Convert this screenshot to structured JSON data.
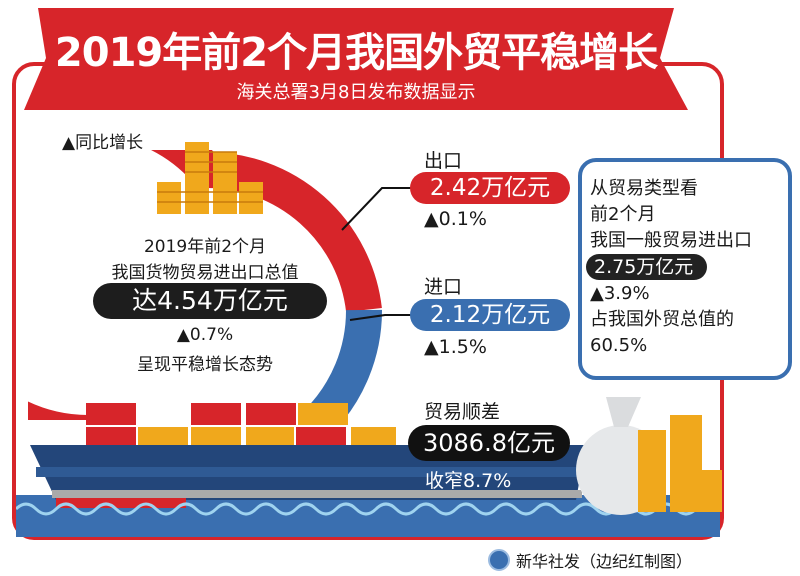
{
  "header": {
    "title": "2019年前2个月我国外贸平稳增长",
    "subtitle": "海关总署3月8日发布数据显示"
  },
  "legend": {
    "yoy_label": "▲同比增长"
  },
  "total": {
    "line1": "2019年前2个月",
    "line2": "我国货物贸易进出口总值",
    "value": "达4.54万亿元",
    "growth": "▲0.7%",
    "line3": "呈现平稳增长态势"
  },
  "export": {
    "label": "出口",
    "value": "2.42万亿元",
    "growth": "▲0.1%",
    "share_fraction": 0.533
  },
  "import": {
    "label": "进口",
    "value": "2.12万亿元",
    "growth": "▲1.5%"
  },
  "surplus": {
    "label": "贸易顺差",
    "value": "3086.8亿元",
    "change": "收窄8.7%"
  },
  "general_trade": {
    "line1": "从贸易类型看",
    "line2": "前2个月",
    "line3": "我国一般贸易进出口",
    "value": "2.75万亿元",
    "growth": "▲3.9%",
    "line4": "占我国外贸总值的",
    "share": "60.5%"
  },
  "credit": "新华社发（边纪红制图）",
  "colors": {
    "red": "#d7252a",
    "blue": "#3a6fb0",
    "black": "#1d1d1d",
    "gold": "#f0a81c"
  }
}
